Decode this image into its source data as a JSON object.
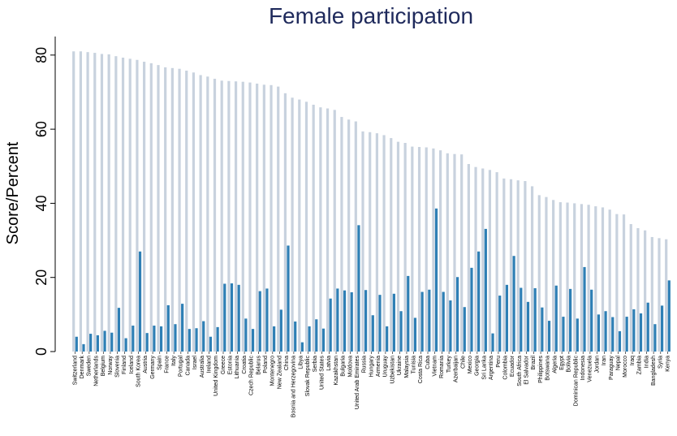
{
  "chart_data": {
    "type": "bar",
    "title": "Female participation",
    "ylabel": "Score/Percent",
    "xlabel": "",
    "ylim": [
      0,
      85
    ],
    "yticks": [
      0,
      20,
      40,
      60,
      80
    ],
    "grid": false,
    "legend": "none",
    "colors": {
      "score": "#c8d2de",
      "percent": "#2e7fb5"
    },
    "categories": [
      "Switzerland",
      "Denmark",
      "Sweden",
      "Netherlands",
      "Belgium",
      "Norway",
      "Slovenia",
      "Finland",
      "Iceland",
      "South Korea",
      "Austria",
      "Germany",
      "Spain",
      "France",
      "Italy",
      "Portugal",
      "Canada",
      "Israel",
      "Australia",
      "Ireland",
      "United Kingdom",
      "Greece",
      "Estonia",
      "Lithuania",
      "Croatia",
      "Czech Republic",
      "Belarus",
      "Poland",
      "Montenegro",
      "New Zealand",
      "China",
      "Bosnia and Herzegovina",
      "Libya",
      "Slovak Republic",
      "Serbia",
      "United States",
      "Latvia",
      "Kazakhstan",
      "Bulgaria",
      "Moldova",
      "United Arab Emirates",
      "Russia",
      "Hungary",
      "Armenia",
      "Uruguay",
      "Uzbekistan",
      "Ukraine",
      "Malaysia",
      "Tunisia",
      "Costa Rica",
      "Cuba",
      "Vietnam",
      "Romania",
      "Turkey",
      "Azerbaijan",
      "Chile",
      "Mexico",
      "Georgia",
      "Sri Lanka",
      "Argentina",
      "Peru",
      "Colombia",
      "Ecuador",
      "South Africa",
      "El Salvador",
      "Brazil",
      "Philippines",
      "Botswana",
      "Algeria",
      "Egypt",
      "Bolivia",
      "Dominican Republic",
      "Indonesia",
      "Venezuela",
      "Jordan",
      "Iran",
      "Paraguay",
      "Nepal",
      "Morocco",
      "Iraq",
      "Zambia",
      "India",
      "Bangladesh",
      "Syria",
      "Kenya"
    ],
    "series": [
      {
        "values": [
          81,
          81,
          80.8,
          80.6,
          80.3,
          80.2,
          79.7,
          79.3,
          79,
          78.7,
          78.2,
          77.8,
          77.3,
          76.7,
          76.5,
          76.3,
          75.8,
          75.3,
          74.6,
          74.2,
          73.6,
          73.1,
          73,
          72.9,
          72.8,
          72.6,
          72.3,
          72,
          71.9,
          71.5,
          69.7,
          68.5,
          68,
          67.4,
          66.6,
          65.9,
          65.6,
          65.2,
          63.3,
          62.6,
          62.1,
          59.4,
          59.2,
          58.9,
          58.4,
          57.6,
          56.6,
          56.3,
          55.3,
          55.2,
          55.1,
          54.8,
          54.3,
          53.5,
          53.3,
          53.2,
          50.6,
          49.8,
          49.4,
          49,
          48.4,
          46.7,
          46.5,
          46.2,
          46,
          44.6,
          42.2,
          41.7,
          40.9,
          40.3,
          40.2,
          40,
          39.8,
          39.6,
          39.2,
          38.9,
          38.3,
          37.1,
          37,
          34.4,
          33.3,
          32.7,
          30.9,
          30.6,
          30.3
        ]
      },
      {
        "values": [
          4,
          2,
          4.8,
          4.4,
          5.6,
          5.1,
          11.8,
          3.6,
          7,
          27,
          5,
          7,
          6.8,
          12.5,
          7.4,
          12.9,
          6.1,
          6.3,
          8.2,
          4,
          6.6,
          18.3,
          18.4,
          18,
          8.9,
          6.1,
          16.3,
          17,
          6.8,
          11.3,
          28.6,
          8.1,
          2.5,
          6.8,
          8.7,
          6.2,
          14.3,
          17,
          16.5,
          16,
          34.1,
          16.6,
          9.8,
          15.3,
          6.8,
          15.6,
          10.9,
          20.4,
          9.1,
          16.1,
          16.7,
          38.6,
          16.1,
          13.8,
          20.1,
          12,
          22.6,
          27,
          33.1,
          4.9,
          15.1,
          18,
          25.8,
          17.2,
          13.4,
          17.1,
          11.9,
          8.3,
          17.8,
          9.4,
          16.9,
          8.9,
          22.8,
          16.7,
          10,
          10.9,
          9.3,
          5.5,
          9.4,
          11.4,
          10.3,
          13.2,
          7.4,
          12.4,
          19.2
        ]
      }
    ]
  }
}
